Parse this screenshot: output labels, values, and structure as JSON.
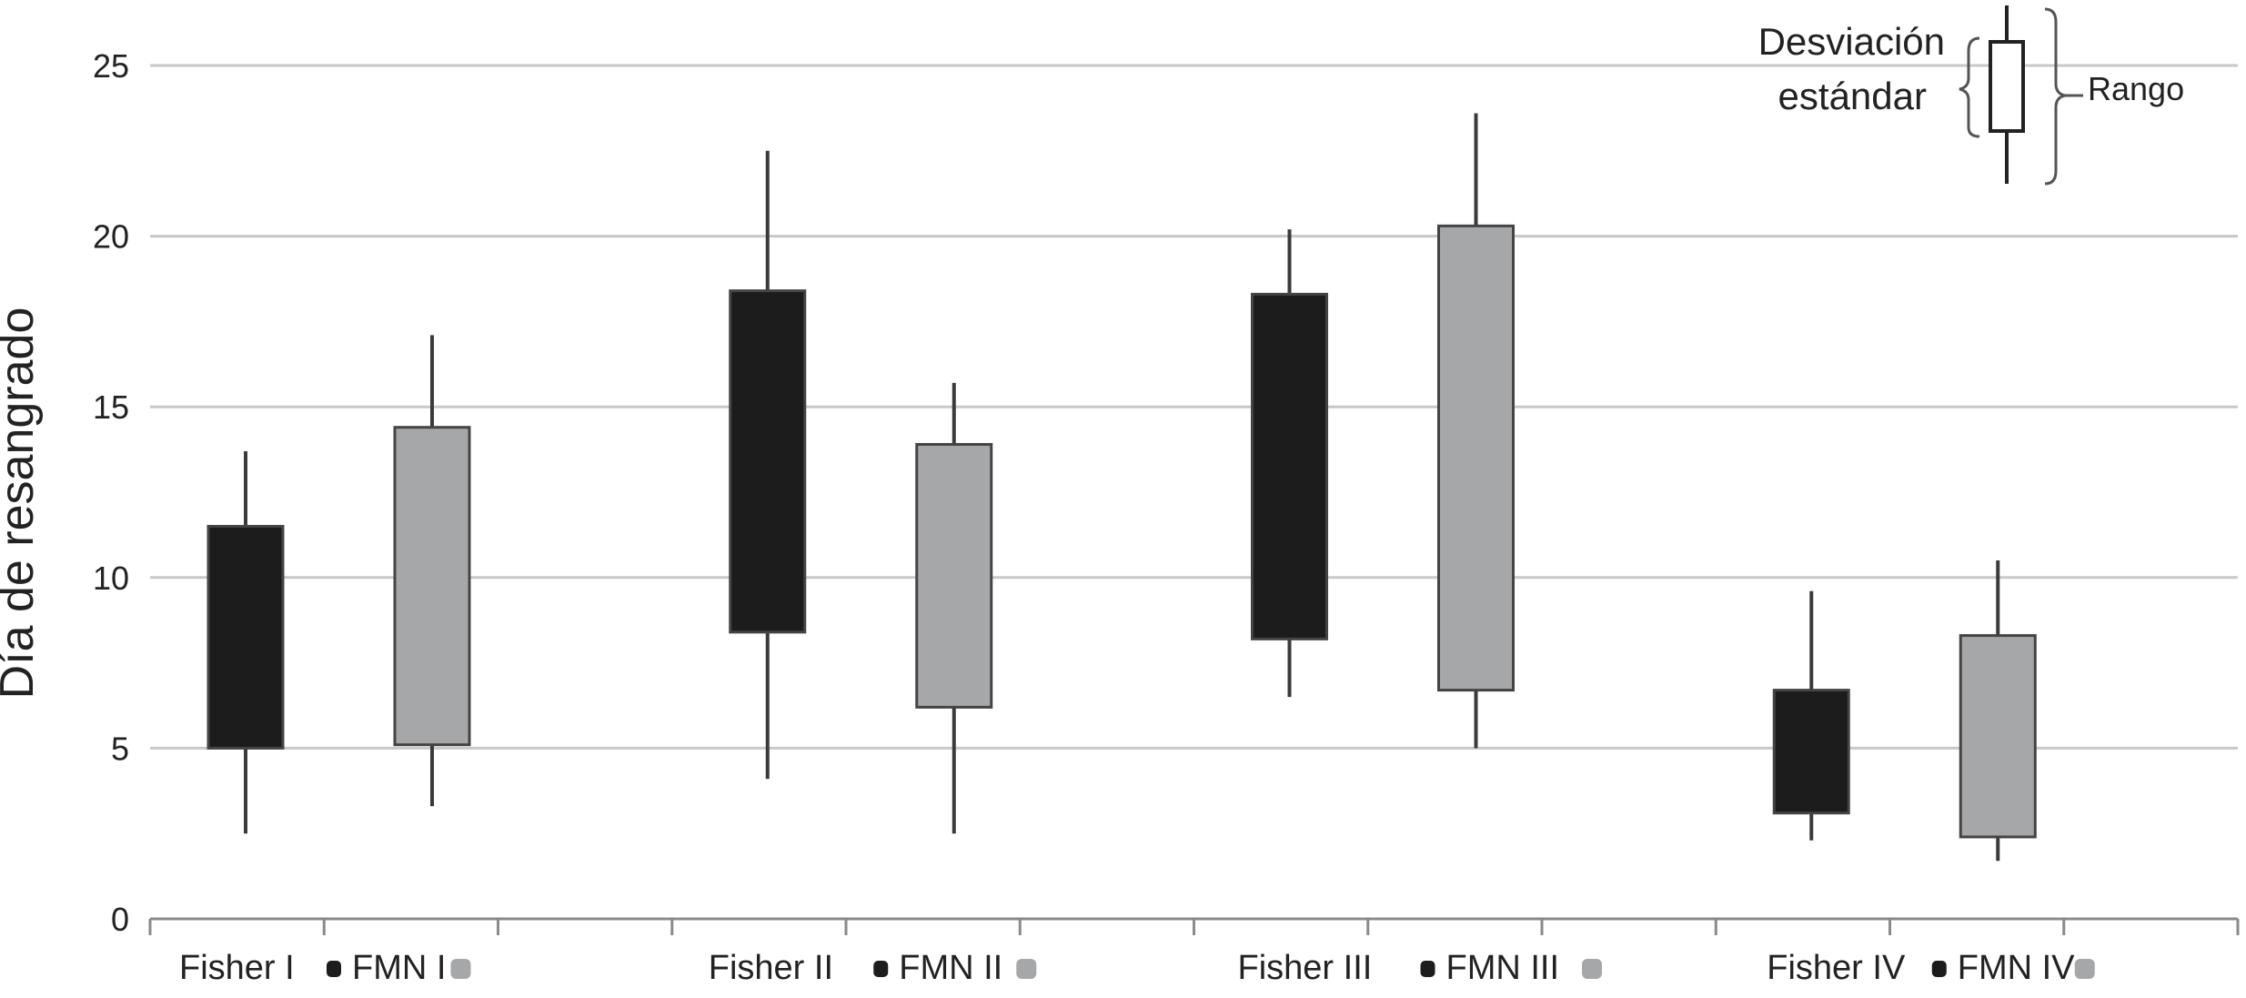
{
  "chart_data": {
    "type": "box",
    "ylabel": "Día de resangrado",
    "ylim": [
      0,
      25
    ],
    "yticks": [
      0,
      5,
      10,
      15,
      20,
      25
    ],
    "grid": true,
    "categories": [
      "Fisher I",
      "FMN I",
      "Fisher II",
      "FMN II",
      "Fisher III",
      "FMN III",
      "Fisher IV",
      "FMN IV"
    ],
    "groups": [
      {
        "boxes": [
          {
            "label": "Fisher I",
            "color": "#1c1c1c",
            "min": 2.5,
            "q1": 5.0,
            "q3": 11.5,
            "max": 13.7
          },
          {
            "label": "FMN I",
            "color": "#a6a7a9",
            "min": 3.3,
            "q1": 5.1,
            "q3": 14.4,
            "max": 17.1
          }
        ]
      },
      {
        "boxes": [
          {
            "label": "Fisher II",
            "color": "#1c1c1c",
            "min": 4.1,
            "q1": 8.4,
            "q3": 18.4,
            "max": 22.5
          },
          {
            "label": "FMN II",
            "color": "#a6a7a9",
            "min": 2.5,
            "q1": 6.2,
            "q3": 13.9,
            "max": 15.7
          }
        ]
      },
      {
        "boxes": [
          {
            "label": "Fisher III",
            "color": "#1c1c1c",
            "min": 6.5,
            "q1": 8.2,
            "q3": 18.3,
            "max": 20.2
          },
          {
            "label": "FMN III",
            "color": "#a6a7a9",
            "min": 5.0,
            "q1": 6.7,
            "q3": 20.3,
            "max": 23.6
          }
        ]
      },
      {
        "boxes": [
          {
            "label": "Fisher IV",
            "color": "#1c1c1c",
            "min": 2.3,
            "q1": 3.1,
            "q3": 6.7,
            "max": 9.6
          },
          {
            "label": "FMN IV",
            "color": "#a6a7a9",
            "min": 1.7,
            "q1": 2.4,
            "q3": 8.3,
            "max": 10.5
          }
        ]
      }
    ],
    "legend": {
      "position": "top-right",
      "std_label_line1": "Desviación",
      "std_label_line2": "estándar",
      "range_label": "Rango"
    }
  },
  "colors": {
    "fisher": "#1c1c1c",
    "fmn": "#a6a7a9",
    "grid": "#c8c8c8",
    "axis": "#8a8a8a",
    "whisker": "#3a3a3a",
    "text": "#222222"
  }
}
